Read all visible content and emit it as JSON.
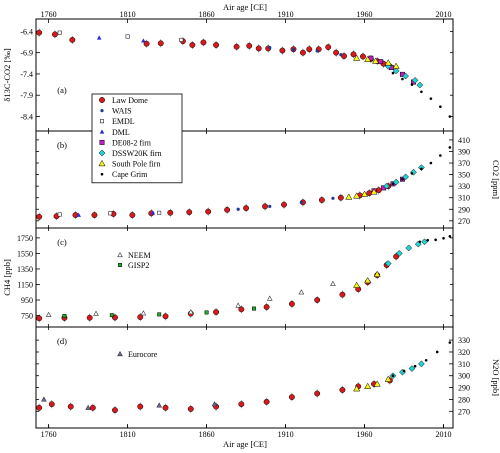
{
  "chart_data": {
    "type": "scatter",
    "top_axis_label": "Air age [CE]",
    "bottom_axis_label": "Air age [CE]",
    "x_ticks": [
      1760,
      1810,
      1860,
      1910,
      1960,
      2010
    ],
    "xlim": [
      1752,
      2016
    ],
    "panels": [
      {
        "id": "a",
        "label": "(a)",
        "ylabel": "δ13C-CO2 [‰]",
        "yaxis_side": "left",
        "ylim": [
          -8.6,
          -6.25
        ],
        "y_ticks": [
          -6.4,
          -6.9,
          -7.4,
          -7.9,
          -8.4
        ],
        "y_ticklabels": [
          "-6.4",
          "-6.9",
          "-7.4",
          "-7.9",
          "-8.4"
        ],
        "series": [
          {
            "name": "Law Dome",
            "x": [
              1754,
              1764,
              1775,
              1822,
              1831,
              1845,
              1851,
              1858,
              1866,
              1879,
              1887,
              1893,
              1899,
              1908,
              1915,
              1921,
              1925,
              1931,
              1937,
              1942,
              1947,
              1953,
              1959,
              1964,
              1968,
              1972,
              1976
            ],
            "y": [
              -6.43,
              -6.47,
              -6.6,
              -6.69,
              -6.68,
              -6.63,
              -6.72,
              -6.66,
              -6.72,
              -6.76,
              -6.74,
              -6.8,
              -6.8,
              -6.85,
              -6.82,
              -6.9,
              -6.82,
              -6.82,
              -6.77,
              -6.9,
              -6.98,
              -6.94,
              -6.99,
              -7.05,
              -7.1,
              -7.16,
              -7.22
            ]
          },
          {
            "name": "WAIS",
            "x": [
              1900,
              1915,
              1930,
              1945
            ],
            "y": [
              -6.78,
              -6.83,
              -6.86,
              -6.95
            ]
          },
          {
            "name": "EMDL",
            "x": [
              1767,
              1810,
              1844
            ],
            "y": [
              -6.43,
              -6.52,
              -6.6
            ]
          },
          {
            "name": "DML",
            "x": [
              1792,
              1820
            ],
            "y": [
              -6.55,
              -6.62
            ]
          },
          {
            "name": "DE08-2 firn",
            "x": [
              1964,
              1970,
              1977,
              1984,
              1991
            ],
            "y": [
              -7.03,
              -7.11,
              -7.25,
              -7.41,
              -7.59
            ]
          },
          {
            "name": "DSSW20K firn",
            "x": [
              1975,
              1980,
              1986,
              1992,
              1995
            ],
            "y": [
              -7.22,
              -7.33,
              -7.45,
              -7.55,
              -7.66
            ]
          },
          {
            "name": "South Pole firn",
            "x": [
              1955,
              1962,
              1967,
              1975,
              1980
            ],
            "y": [
              -7.03,
              -7.06,
              -7.1,
              -7.14,
              -7.22
            ]
          },
          {
            "name": "Cape Grim",
            "x": [
              1978,
              1984,
              1990,
              1996,
              2002,
              2008,
              2014
            ],
            "y": [
              -7.38,
              -7.52,
              -7.65,
              -7.82,
              -7.98,
              -8.17,
              -8.4
            ]
          }
        ]
      },
      {
        "id": "b",
        "label": "(b)",
        "ylabel": "CO2 [ppm]",
        "yaxis_side": "right",
        "ylim": [
          268,
          415
        ],
        "y_ticks": [
          270,
          290,
          310,
          330,
          350,
          370,
          390,
          410
        ],
        "y_ticklabels": [
          "270",
          "290",
          "310",
          "330",
          "350",
          "370",
          "390",
          "410"
        ],
        "series": [
          {
            "name": "Law Dome",
            "x": [
              1754,
              1765,
              1777,
              1789,
              1801,
              1813,
              1825,
              1837,
              1849,
              1861,
              1873,
              1885,
              1897,
              1909,
              1921,
              1933,
              1945,
              1957,
              1963,
              1969,
              1975
            ],
            "y": [
              277,
              278,
              280,
              280,
              282,
              280,
              283,
              284,
              285,
              286,
              289,
              292,
              295,
              298,
              302,
              306,
              310,
              314,
              318,
              323,
              330
            ]
          },
          {
            "name": "WAIS",
            "x": [
              1880,
              1900,
              1920,
              1940
            ],
            "y": [
              290,
              295,
              302,
              309
            ]
          },
          {
            "name": "EMDL",
            "x": [
              1767,
              1799,
              1830
            ],
            "y": [
              281,
              283,
              284
            ]
          },
          {
            "name": "DML",
            "x": [
              1779,
              1826
            ],
            "y": [
              280,
              284
            ]
          },
          {
            "name": "DE08-2 firn",
            "x": [
              1966,
              1972,
              1978,
              1984
            ],
            "y": [
              322,
              327,
              334,
              342
            ]
          },
          {
            "name": "DSSW20K firn",
            "x": [
              1974,
              1980,
              1986,
              1991,
              1996
            ],
            "y": [
              330,
              337,
              346,
              354,
              362
            ]
          },
          {
            "name": "South Pole firn",
            "x": [
              1950,
              1955,
              1960,
              1966
            ],
            "y": [
              311,
              313,
              316,
              320
            ]
          },
          {
            "name": "Cape Grim",
            "x": [
              1978,
              1984,
              1990,
              1996,
              2002,
              2008,
              2014
            ],
            "y": [
              334,
              342,
              352,
              360,
              370,
              383,
              397
            ]
          }
        ]
      },
      {
        "id": "c",
        "label": "(c)",
        "ylabel": "CH4 [ppb]",
        "yaxis_side": "left",
        "ylim": [
          680,
          1800
        ],
        "y_ticks": [
          750,
          950,
          1150,
          1350,
          1550,
          1750
        ],
        "y_ticklabels": [
          "750",
          "950",
          "1150",
          "1350",
          "1550",
          "1750"
        ],
        "legend_extra": [
          "NEEM",
          "GISP2"
        ],
        "series": [
          {
            "name": "Law Dome",
            "x": [
              1754,
              1770,
              1786,
              1802,
              1818,
              1834,
              1850,
              1866,
              1882,
              1898,
              1914,
              1930,
              1946,
              1956,
              1962,
              1968,
              1974,
              1980
            ],
            "y": [
              715,
              720,
              722,
              725,
              730,
              740,
              775,
              795,
              830,
              860,
              900,
              950,
              1020,
              1090,
              1180,
              1270,
              1400,
              1510
            ]
          },
          {
            "name": "NEEM",
            "x": [
              1760,
              1790,
              1820,
              1850,
              1880,
              1900,
              1920,
              1940
            ],
            "y": [
              760,
              775,
              780,
              795,
              880,
              970,
              1050,
              1160
            ]
          },
          {
            "name": "GISP2",
            "x": [
              1770,
              1800,
              1830,
              1860,
              1890
            ],
            "y": [
              745,
              755,
              765,
              790,
              840
            ]
          },
          {
            "name": "DSSW20K firn",
            "x": [
              1975,
              1982,
              1988,
              1994,
              1998
            ],
            "y": [
              1420,
              1550,
              1620,
              1670,
              1700
            ]
          },
          {
            "name": "South Pole firn",
            "x": [
              1955,
              1962,
              1968
            ],
            "y": [
              1140,
              1200,
              1280
            ]
          },
          {
            "name": "Cape Grim",
            "x": [
              1995,
              2000,
              2005,
              2010,
              2014
            ],
            "y": [
              1700,
              1720,
              1725,
              1745,
              1770
            ]
          }
        ]
      },
      {
        "id": "d",
        "label": "(d)",
        "ylabel": "N2O [ppb]",
        "yaxis_side": "right",
        "ylim": [
          261,
          336
        ],
        "y_ticks": [
          270,
          280,
          290,
          300,
          310,
          320,
          330
        ],
        "y_ticklabels": [
          "270",
          "280",
          "290",
          "300",
          "310",
          "320",
          "330"
        ],
        "legend_extra": [
          "Eurocore"
        ],
        "series": [
          {
            "name": "Law Dome",
            "x": [
              1754,
              1762,
              1774,
              1788,
              1802,
              1818,
              1834,
              1850,
              1866,
              1882,
              1898,
              1914,
              1930,
              1946,
              1956,
              1966,
              1976
            ],
            "y": [
              273,
              276,
              274,
              273,
              271,
              274,
              273,
              272,
              274,
              276,
              278,
              282,
              285,
              288,
              291,
              293,
              296
            ]
          },
          {
            "name": "Eurocore",
            "x": [
              1757,
              1785,
              1830,
              1865
            ],
            "y": [
              280,
              273,
              275,
              276
            ]
          },
          {
            "name": "DSSW20K firn",
            "x": [
              1978,
              1984,
              1990,
              1996
            ],
            "y": [
              300,
              303,
              306,
              310
            ]
          },
          {
            "name": "South Pole firn",
            "x": [
              1955,
              1962,
              1968,
              1975
            ],
            "y": [
              289,
              291,
              293,
              297
            ]
          },
          {
            "name": "Cape Grim",
            "x": [
              1978,
              1985,
              1992,
              1999,
              2006,
              2014
            ],
            "y": [
              300,
              304,
              308,
              313,
              320,
              328
            ]
          }
        ]
      }
    ],
    "legend": {
      "placement": "panel-a-left",
      "entries": [
        "Law Dome",
        "WAIS",
        "EMDL",
        "DML",
        "DE08-2 firn",
        "DSSW20K firn",
        "South Pole firn",
        "Cape Grim"
      ]
    },
    "colors": {
      "Law Dome": "#d7191c",
      "WAIS": "#1f3a93",
      "EMDL": "#ffffff",
      "DML": "#2b2bd4",
      "DE08-2 firn": "#c11fc1",
      "DSSW20K firn": "#21d5d5",
      "South Pole firn": "#f5f51b",
      "Cape Grim": "#000000",
      "NEEM": "#ffffff",
      "GISP2": "#22aa22",
      "Eurocore": "#6a6aa8"
    }
  }
}
